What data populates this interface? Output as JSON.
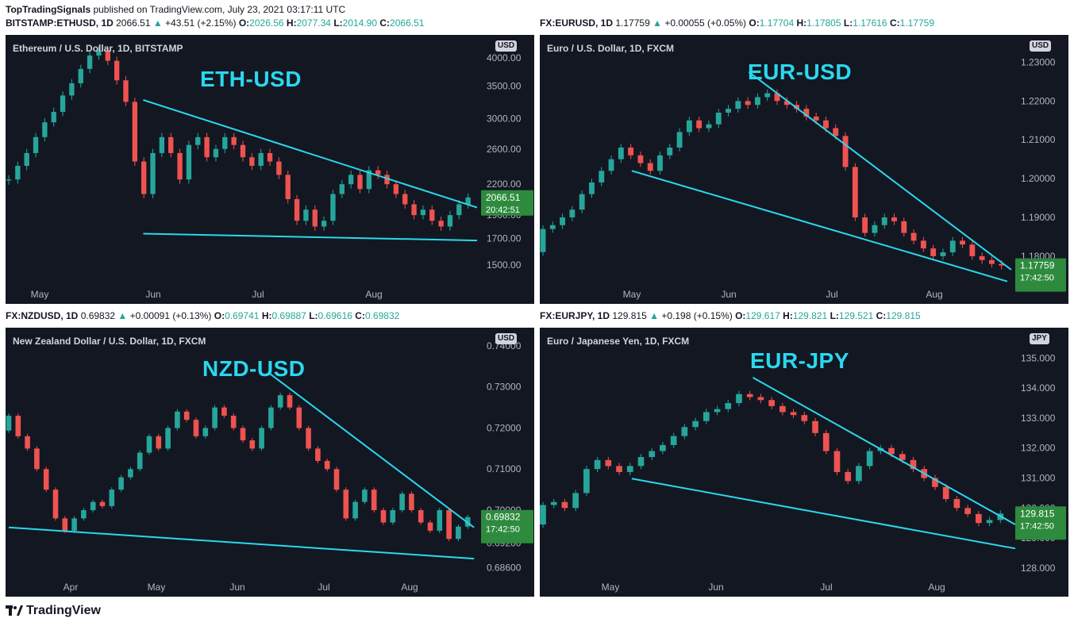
{
  "publish": {
    "user": "TopTradingSignals",
    "text": " published on TradingView.com, July 23, 2021 03:17:11 UTC"
  },
  "brand": "TradingView",
  "panels": [
    {
      "id": "eth",
      "header": {
        "symbol": "BITSTAMP:ETHUSD, 1D",
        "last": "2066.51",
        "change": "+43.51 (+2.15%)",
        "o": "2026.56",
        "h": "2077.34",
        "l": "2014.90",
        "c": "2066.51"
      },
      "title": "Ethereum / U.S. Dollar, 1D, BITSTAMP",
      "currency": "USD",
      "overlay_label": "ETH-USD",
      "price_label": "2066.51",
      "timer": "20:42:51"
    },
    {
      "id": "eurusd",
      "header": {
        "symbol": "FX:EURUSD, 1D",
        "last": "1.17759",
        "change": "+0.00055 (+0.05%)",
        "o": "1.17704",
        "h": "1.17805",
        "l": "1.17616",
        "c": "1.17759"
      },
      "title": "Euro / U.S. Dollar, 1D, FXCM",
      "currency": "USD",
      "overlay_label": "EUR-USD",
      "price_label": "1.17759",
      "timer": "17:42:50"
    },
    {
      "id": "nzdusd",
      "header": {
        "symbol": "FX:NZDUSD, 1D",
        "last": "0.69832",
        "change": "+0.00091 (+0.13%)",
        "o": "0.69741",
        "h": "0.69887",
        "l": "0.69616",
        "c": "0.69832"
      },
      "title": "New Zealand Dollar / U.S. Dollar, 1D, FXCM",
      "currency": "USD",
      "overlay_label": "NZD-USD",
      "price_label": "0.69832",
      "timer": "17:42:50"
    },
    {
      "id": "eurjpy",
      "header": {
        "symbol": "FX:EURJPY, 1D",
        "last": "129.815",
        "change": "+0.198 (+0.15%)",
        "o": "129.617",
        "h": "129.821",
        "l": "129.521",
        "c": "129.815"
      },
      "title": "Euro / Japanese Yen, 1D, FXCM",
      "currency": "JPY",
      "overlay_label": "EUR-JPY",
      "price_label": "129.815",
      "timer": "17:42:50"
    }
  ],
  "chart_data": [
    {
      "type": "candlestick",
      "title": "Ethereum / U.S. Dollar, 1D, BITSTAMP",
      "x_ticks": [
        "May",
        "Jun",
        "Jul",
        "Aug"
      ],
      "y_ticks": [
        "4000.00",
        "3500.00",
        "3000.00",
        "2600.00",
        "2200.00",
        "1900.00",
        "1700.00",
        "1500.00"
      ],
      "y_scale": "log",
      "ylim": [
        1350,
        4300
      ],
      "x_start": "2021-04-20",
      "points": [
        [
          null,
          2250
        ],
        [
          null,
          2400
        ],
        [
          null,
          2550
        ],
        [
          null,
          2750
        ],
        [
          null,
          2950
        ],
        [
          null,
          3100
        ],
        [
          null,
          3350
        ],
        [
          null,
          3550
        ],
        [
          null,
          3800
        ],
        [
          null,
          4050
        ],
        [
          null,
          4150
        ],
        [
          null,
          3950
        ],
        [
          null,
          3600
        ],
        [
          null,
          3250
        ],
        [
          null,
          2450
        ],
        [
          null,
          2100
        ],
        [
          null,
          2550
        ],
        [
          null,
          2750
        ],
        [
          null,
          2550
        ],
        [
          null,
          2250
        ],
        [
          null,
          2650
        ],
        [
          null,
          2750
        ],
        [
          null,
          2500
        ],
        [
          null,
          2600
        ],
        [
          null,
          2750
        ],
        [
          null,
          2650
        ],
        [
          null,
          2500
        ],
        [
          null,
          2400
        ],
        [
          null,
          2550
        ],
        [
          null,
          2450
        ],
        [
          null,
          2300
        ],
        [
          null,
          2050
        ],
        [
          null,
          1850
        ],
        [
          null,
          1950
        ],
        [
          null,
          1800
        ],
        [
          null,
          1850
        ],
        [
          null,
          2100
        ],
        [
          null,
          2200
        ],
        [
          null,
          2300
        ],
        [
          null,
          2150
        ],
        [
          null,
          2350
        ],
        [
          null,
          2300
        ],
        [
          null,
          2200
        ],
        [
          null,
          2100
        ],
        [
          null,
          2000
        ],
        [
          null,
          1900
        ],
        [
          null,
          1950
        ],
        [
          null,
          1850
        ],
        [
          null,
          1800
        ],
        [
          null,
          1900
        ],
        [
          null,
          2000
        ],
        [
          null,
          2066.51
        ]
      ],
      "trendlines": [
        {
          "name": "resistance",
          "from": [
            "2021-05-19",
            3280
          ],
          "to": [
            "2021-07-30",
            1970
          ]
        },
        {
          "name": "support",
          "from": [
            "2021-05-19",
            1740
          ],
          "to": [
            "2021-07-30",
            1685
          ]
        }
      ],
      "last": 2066.51
    },
    {
      "type": "candlestick",
      "title": "Euro / U.S. Dollar, 1D, FXCM",
      "x_ticks": [
        "May",
        "Jun",
        "Jul",
        "Aug"
      ],
      "y_ticks": [
        "1.23000",
        "1.22000",
        "1.21000",
        "1.20000",
        "1.19000",
        "1.18000"
      ],
      "ylim": [
        1.172,
        1.235
      ],
      "x_start": "2021-04-05",
      "points": [
        [
          null,
          1.187
        ],
        [
          null,
          1.188
        ],
        [
          null,
          1.19
        ],
        [
          null,
          1.192
        ],
        [
          null,
          1.196
        ],
        [
          null,
          1.199
        ],
        [
          null,
          1.202
        ],
        [
          null,
          1.205
        ],
        [
          null,
          1.208
        ],
        [
          null,
          1.206
        ],
        [
          null,
          1.204
        ],
        [
          null,
          1.202
        ],
        [
          null,
          1.206
        ],
        [
          null,
          1.208
        ],
        [
          null,
          1.212
        ],
        [
          null,
          1.215
        ],
        [
          null,
          1.213
        ],
        [
          null,
          1.214
        ],
        [
          null,
          1.217
        ],
        [
          null,
          1.218
        ],
        [
          null,
          1.22
        ],
        [
          null,
          1.219
        ],
        [
          null,
          1.221
        ],
        [
          null,
          1.222
        ],
        [
          null,
          1.22
        ],
        [
          null,
          1.219
        ],
        [
          null,
          1.218
        ],
        [
          null,
          1.216
        ],
        [
          null,
          1.215
        ],
        [
          null,
          1.213
        ],
        [
          null,
          1.211
        ],
        [
          null,
          1.203
        ],
        [
          null,
          1.19
        ],
        [
          null,
          1.186
        ],
        [
          null,
          1.188
        ],
        [
          null,
          1.19
        ],
        [
          null,
          1.189
        ],
        [
          null,
          1.186
        ],
        [
          null,
          1.184
        ],
        [
          null,
          1.182
        ],
        [
          null,
          1.18
        ],
        [
          null,
          1.181
        ],
        [
          null,
          1.184
        ],
        [
          null,
          1.183
        ],
        [
          null,
          1.18
        ],
        [
          null,
          1.179
        ],
        [
          null,
          1.178
        ],
        [
          null,
          1.17759
        ]
      ],
      "trendlines": [
        {
          "name": "resistance",
          "from": [
            "2021-05-26",
            1.2275
          ],
          "to": [
            "2021-07-30",
            1.1765
          ]
        },
        {
          "name": "support",
          "from": [
            "2021-04-27",
            1.202
          ],
          "to": [
            "2021-07-29",
            1.1735
          ]
        }
      ],
      "last": 1.17759
    },
    {
      "type": "candlestick",
      "title": "New Zealand Dollar / U.S. Dollar, 1D, FXCM",
      "x_ticks": [
        "Apr",
        "May",
        "Jun",
        "Jul",
        "Aug"
      ],
      "y_ticks": [
        "0.74000",
        "0.73000",
        "0.72000",
        "0.71000",
        "0.70000",
        "0.69200",
        "0.68600"
      ],
      "ylim": [
        0.683,
        0.7425
      ],
      "x_start": "2021-03-01",
      "points": [
        [
          null,
          0.723
        ],
        [
          null,
          0.718
        ],
        [
          null,
          0.715
        ],
        [
          null,
          0.71
        ],
        [
          null,
          0.705
        ],
        [
          null,
          0.698
        ],
        [
          null,
          0.695
        ],
        [
          null,
          0.698
        ],
        [
          null,
          0.7
        ],
        [
          null,
          0.702
        ],
        [
          null,
          0.701
        ],
        [
          null,
          0.705
        ],
        [
          null,
          0.708
        ],
        [
          null,
          0.71
        ],
        [
          null,
          0.714
        ],
        [
          null,
          0.718
        ],
        [
          null,
          0.715
        ],
        [
          null,
          0.72
        ],
        [
          null,
          0.724
        ],
        [
          null,
          0.722
        ],
        [
          null,
          0.718
        ],
        [
          null,
          0.72
        ],
        [
          null,
          0.725
        ],
        [
          null,
          0.723
        ],
        [
          null,
          0.72
        ],
        [
          null,
          0.717
        ],
        [
          null,
          0.715
        ],
        [
          null,
          0.72
        ],
        [
          null,
          0.725
        ],
        [
          null,
          0.728
        ],
        [
          null,
          0.725
        ],
        [
          null,
          0.72
        ],
        [
          null,
          0.715
        ],
        [
          null,
          0.712
        ],
        [
          null,
          0.71
        ],
        [
          null,
          0.705
        ],
        [
          null,
          0.698
        ],
        [
          null,
          0.702
        ],
        [
          null,
          0.705
        ],
        [
          null,
          0.7
        ],
        [
          null,
          0.697
        ],
        [
          null,
          0.7
        ],
        [
          null,
          0.704
        ],
        [
          null,
          0.7
        ],
        [
          null,
          0.697
        ],
        [
          null,
          0.695
        ],
        [
          null,
          0.7
        ],
        [
          null,
          0.693
        ],
        [
          null,
          0.696
        ],
        [
          null,
          0.69832
        ]
      ],
      "trendlines": [
        {
          "name": "resistance",
          "from": [
            "2021-05-25",
            0.7334
          ],
          "to": [
            "2021-07-31",
            0.6958
          ]
        },
        {
          "name": "support",
          "from": [
            "2021-03-01",
            0.6958
          ],
          "to": [
            "2021-07-31",
            0.6882
          ]
        }
      ],
      "last": 0.69832
    },
    {
      "type": "candlestick",
      "title": "Euro / Japanese Yen, 1D, FXCM",
      "x_ticks": [
        "May",
        "Jun",
        "Jul",
        "Aug"
      ],
      "y_ticks": [
        "135.000",
        "134.000",
        "133.000",
        "132.000",
        "131.000",
        "130.000",
        "129.000",
        "128.000"
      ],
      "ylim": [
        127.6,
        135.75
      ],
      "x_start": "2021-04-05",
      "points": [
        [
          null,
          130.1
        ],
        [
          null,
          130.2
        ],
        [
          null,
          130.0
        ],
        [
          null,
          130.5
        ],
        [
          null,
          131.3
        ],
        [
          null,
          131.6
        ],
        [
          null,
          131.4
        ],
        [
          null,
          131.2
        ],
        [
          null,
          131.4
        ],
        [
          null,
          131.7
        ],
        [
          null,
          131.9
        ],
        [
          null,
          132.1
        ],
        [
          null,
          132.4
        ],
        [
          null,
          132.7
        ],
        [
          null,
          132.9
        ],
        [
          null,
          133.2
        ],
        [
          null,
          133.3
        ],
        [
          null,
          133.5
        ],
        [
          null,
          133.8
        ],
        [
          null,
          133.7
        ],
        [
          null,
          133.6
        ],
        [
          null,
          133.4
        ],
        [
          null,
          133.2
        ],
        [
          null,
          133.1
        ],
        [
          null,
          132.9
        ],
        [
          null,
          132.5
        ],
        [
          null,
          131.9
        ],
        [
          null,
          131.2
        ],
        [
          null,
          130.9
        ],
        [
          null,
          131.4
        ],
        [
          null,
          131.9
        ],
        [
          null,
          132.0
        ],
        [
          null,
          131.8
        ],
        [
          null,
          131.6
        ],
        [
          null,
          131.3
        ],
        [
          null,
          131.0
        ],
        [
          null,
          130.7
        ],
        [
          null,
          130.3
        ],
        [
          null,
          130.0
        ],
        [
          null,
          129.8
        ],
        [
          null,
          129.5
        ],
        [
          null,
          129.6
        ],
        [
          null,
          129.815
        ]
      ],
      "trendlines": [
        {
          "name": "resistance",
          "from": [
            "2021-05-27",
            134.35
          ],
          "to": [
            "2021-07-31",
            129.45
          ]
        },
        {
          "name": "support",
          "from": [
            "2021-04-27",
            130.98
          ],
          "to": [
            "2021-07-31",
            128.65
          ]
        }
      ],
      "last": 129.815
    }
  ],
  "colors": {
    "bull": "#26a69a",
    "bear": "#ef5350",
    "bg": "#131722",
    "axis_text": "#b2b5be",
    "trendline": "#2ad8ee",
    "price_label": "#2e8b3e"
  }
}
